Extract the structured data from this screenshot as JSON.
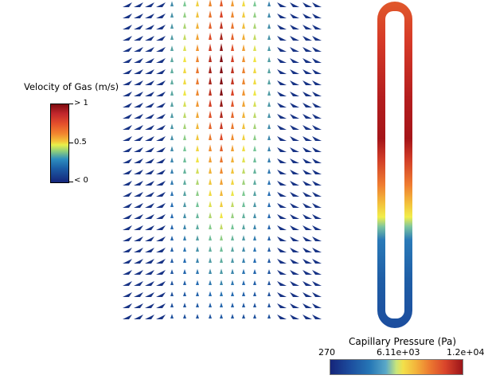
{
  "velocity_legend": {
    "title": "Velocity of Gas (m/s)",
    "max_label": "> 1",
    "mid_label": "0.5",
    "min_label": "< 0"
  },
  "pressure_legend": {
    "title": "Capillary Pressure (Pa)",
    "min_label": "270",
    "mid_label": "6.11e+03",
    "max_label": "1.2e+04"
  },
  "colors": {
    "low": "#15257a",
    "mid": "#e8f04a",
    "high": "#7d0b10",
    "background": "#ffffff"
  }
}
